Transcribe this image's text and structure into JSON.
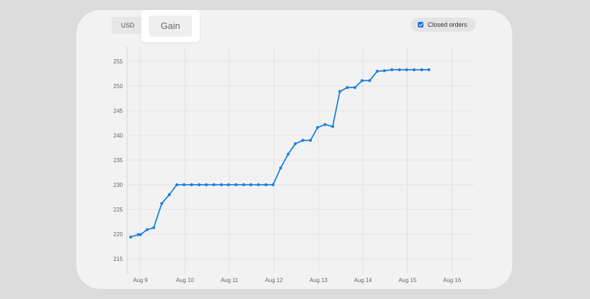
{
  "tabs": {
    "usd_label": "USD",
    "gain_label": "Gain"
  },
  "toggle": {
    "closed_orders_label": "Closed orders",
    "checked": true
  },
  "colors": {
    "line": "#1a7fe0",
    "grid": "#e2e2e2",
    "checkbox": "#1a73e8"
  },
  "chart_data": {
    "type": "line",
    "title": "",
    "xlabel": "",
    "ylabel": "",
    "ylim": [
      212,
      258
    ],
    "xlim": [
      8.7,
      16.5
    ],
    "yticks": [
      215,
      220,
      225,
      230,
      235,
      240,
      245,
      250,
      255
    ],
    "xticks": [
      {
        "value": 9,
        "label": "Aug 9"
      },
      {
        "value": 10,
        "label": "Aug 10"
      },
      {
        "value": 11,
        "label": "Aug 11"
      },
      {
        "value": 12,
        "label": "Aug 12"
      },
      {
        "value": 13,
        "label": "Aug 13"
      },
      {
        "value": 14,
        "label": "Aug 14"
      },
      {
        "value": 15,
        "label": "Aug 15"
      },
      {
        "value": 16,
        "label": "Aug 16"
      }
    ],
    "grid": true,
    "series": [
      {
        "points": [
          [
            8.78,
            219.4
          ],
          [
            8.95,
            219.9
          ],
          [
            9.0,
            219.9
          ],
          [
            9.15,
            220.9
          ],
          [
            9.3,
            221.3
          ],
          [
            9.48,
            226.2
          ],
          [
            9.65,
            228.0
          ],
          [
            9.82,
            230.0
          ],
          [
            9.98,
            230.0
          ],
          [
            10.15,
            230.0
          ],
          [
            10.32,
            230.0
          ],
          [
            10.48,
            230.0
          ],
          [
            10.65,
            230.0
          ],
          [
            10.82,
            230.0
          ],
          [
            10.98,
            230.0
          ],
          [
            11.15,
            230.0
          ],
          [
            11.32,
            230.0
          ],
          [
            11.48,
            230.0
          ],
          [
            11.65,
            230.0
          ],
          [
            11.82,
            230.0
          ],
          [
            11.98,
            230.0
          ],
          [
            12.15,
            233.4
          ],
          [
            12.32,
            236.2
          ],
          [
            12.48,
            238.3
          ],
          [
            12.65,
            239.0
          ],
          [
            12.82,
            239.0
          ],
          [
            12.98,
            241.6
          ],
          [
            13.15,
            242.2
          ],
          [
            13.32,
            241.8
          ],
          [
            13.48,
            248.9
          ],
          [
            13.65,
            249.7
          ],
          [
            13.82,
            249.7
          ],
          [
            13.98,
            251.1
          ],
          [
            14.15,
            251.1
          ],
          [
            14.32,
            253.0
          ],
          [
            14.48,
            253.1
          ],
          [
            14.65,
            253.3
          ],
          [
            14.82,
            253.3
          ],
          [
            14.98,
            253.3
          ],
          [
            15.15,
            253.3
          ],
          [
            15.32,
            253.3
          ],
          [
            15.48,
            253.3
          ]
        ]
      }
    ]
  }
}
